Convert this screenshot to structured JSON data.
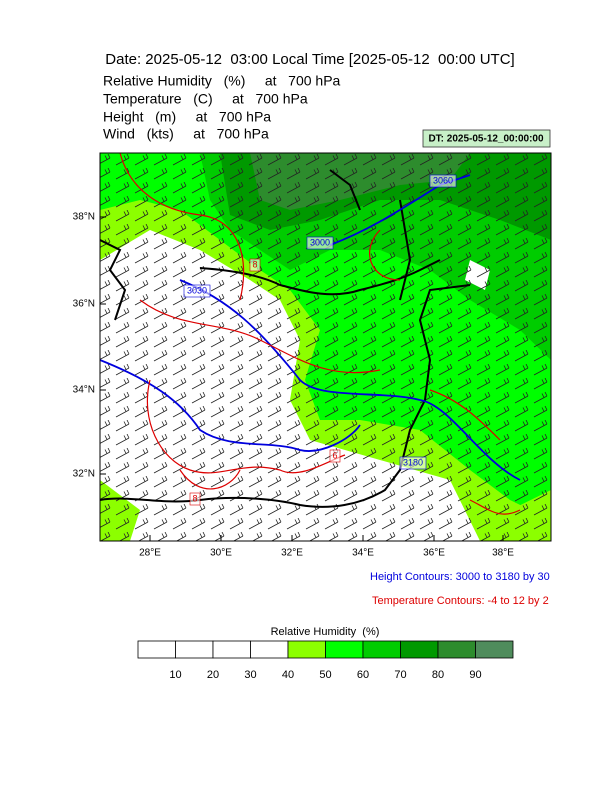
{
  "header": {
    "title": "Date: 2025-05-12  03:00 Local Time [2025-05-12  00:00 UTC]",
    "lines": [
      "Relative Humidity   (%)     at   700 hPa",
      "Temperature   (C)     at   700 hPa",
      "Height   (m)     at   700 hPa",
      "Wind   (kts)     at   700 hPa"
    ]
  },
  "dt_label": "DT: 2025-05-12_00:00:00",
  "map": {
    "lat_labels": [
      "38°N",
      "36°N",
      "34°N",
      "32°N"
    ],
    "lon_labels": [
      "28°E",
      "30°E",
      "32°E",
      "34°E",
      "36°E",
      "38°E"
    ],
    "height_labels": [
      "3060",
      "3000",
      "3030",
      "3180"
    ],
    "temperature_labels": [
      "8",
      "6",
      "8"
    ]
  },
  "legend": {
    "height": "Height Contours: 3000 to 3180 by 30",
    "temperature": "Temperature Contours: -4 to 12 by 2"
  },
  "colorbar": {
    "title": "Relative Humidity  (%)",
    "labels": [
      "10",
      "20",
      "30",
      "40",
      "50",
      "60",
      "70",
      "80",
      "90"
    ],
    "colors": [
      "#ffffff",
      "#ffffff",
      "#ffffff",
      "#ffffff",
      "#8cff00",
      "#00ff00",
      "#00cc00",
      "#009900",
      "#2d8c2d",
      "#4f8c5c"
    ]
  }
}
